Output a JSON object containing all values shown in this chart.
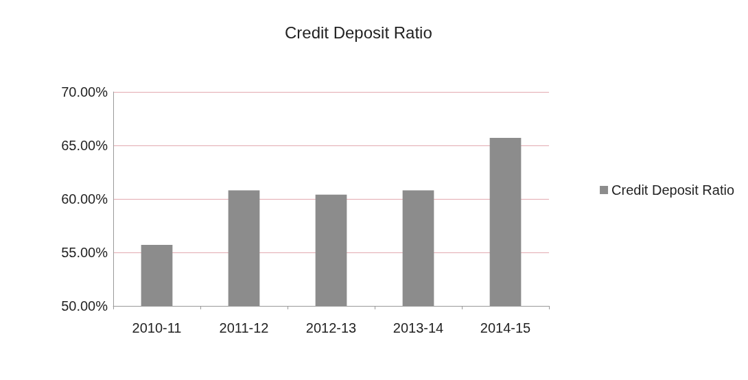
{
  "chart_data": {
    "type": "bar",
    "title": "Credit Deposit Ratio",
    "categories": [
      "2010-11",
      "2011-12",
      "2012-13",
      "2013-14",
      "2014-15"
    ],
    "series": [
      {
        "name": "Credit Deposit Ratio",
        "color": "#8c8c8c",
        "values": [
          55.7,
          60.8,
          60.4,
          60.8,
          65.7
        ]
      }
    ],
    "ylim": [
      50,
      70
    ],
    "yticks": [
      {
        "value": 50,
        "label": "50.00%"
      },
      {
        "value": 55,
        "label": "55.00%"
      },
      {
        "value": 60,
        "label": "60.00%"
      },
      {
        "value": 65,
        "label": "65.00%"
      },
      {
        "value": 70,
        "label": "70.00%"
      }
    ],
    "grid": "y",
    "legend": "right"
  }
}
